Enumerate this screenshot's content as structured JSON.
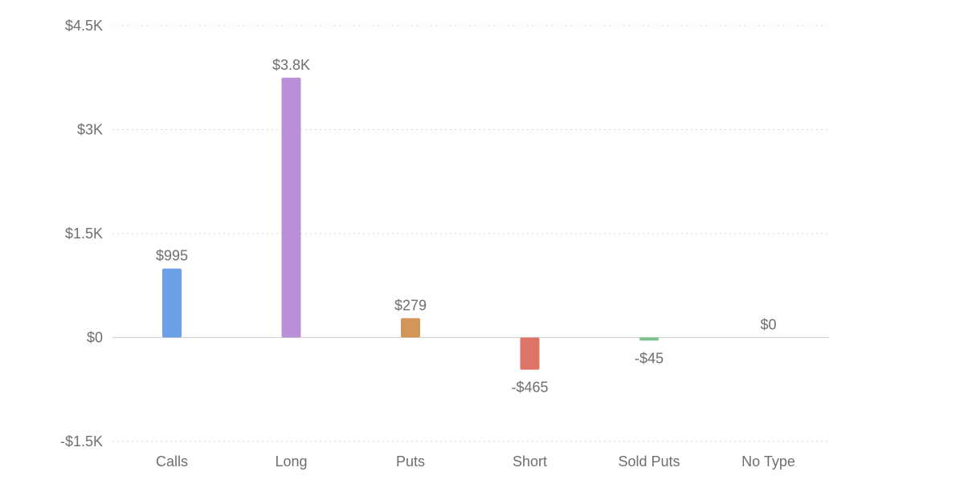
{
  "chart_data": {
    "type": "bar",
    "title": "",
    "xlabel": "",
    "ylabel": "",
    "categories": [
      "Calls",
      "Long",
      "Puts",
      "Short",
      "Sold Puts",
      "No Type"
    ],
    "values": [
      995,
      3750,
      279,
      -465,
      -45,
      0
    ],
    "data_labels": [
      "$995",
      "$3.8K",
      "$279",
      "-$465",
      "-$45",
      "$0"
    ],
    "colors": [
      "#6b9fe6",
      "#b98fd8",
      "#d4955a",
      "#de7467",
      "#7cc08c",
      "#cccccc"
    ],
    "ylim": [
      -1500,
      4500
    ],
    "yticks": [
      4500,
      3000,
      1500,
      0,
      -1500
    ],
    "ytick_labels": [
      "$4.5K",
      "$3K",
      "$1.5K",
      "$0",
      "-$1.5K"
    ],
    "grid": true,
    "legend": "none"
  }
}
